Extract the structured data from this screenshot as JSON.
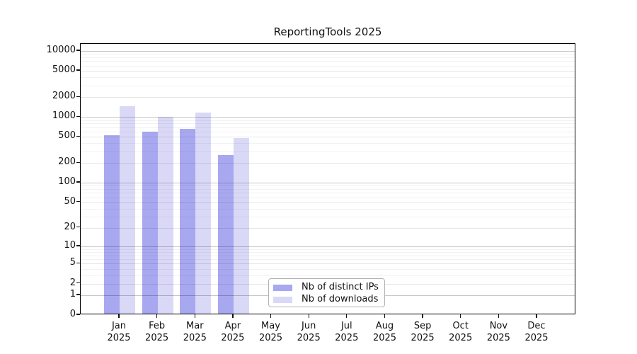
{
  "title": "ReportingTools 2025",
  "chart_data": {
    "type": "bar",
    "title": "ReportingTools 2025",
    "categories": [
      "Jan",
      "Feb",
      "Mar",
      "Apr",
      "May",
      "Jun",
      "Jul",
      "Aug",
      "Sep",
      "Oct",
      "Nov",
      "Dec"
    ],
    "year_label": "2025",
    "xlabel": "",
    "ylabel": "",
    "y_scale": "log1p",
    "y_ticks": [
      0,
      1,
      2,
      5,
      10,
      20,
      50,
      100,
      200,
      500,
      1000,
      2000,
      5000,
      10000
    ],
    "ylim": [
      0,
      12800
    ],
    "grid": true,
    "legend_position": "bottom-center",
    "series": [
      {
        "name": "Nb of distinct IPs",
        "color": "#a8a8f0",
        "values": [
          500,
          570,
          630,
          250,
          null,
          null,
          null,
          null,
          null,
          null,
          null,
          null
        ]
      },
      {
        "name": "Nb of downloads",
        "color": "#d9d9f7",
        "values": [
          1400,
          960,
          1100,
          460,
          null,
          null,
          null,
          null,
          null,
          null,
          null,
          null
        ]
      }
    ]
  }
}
